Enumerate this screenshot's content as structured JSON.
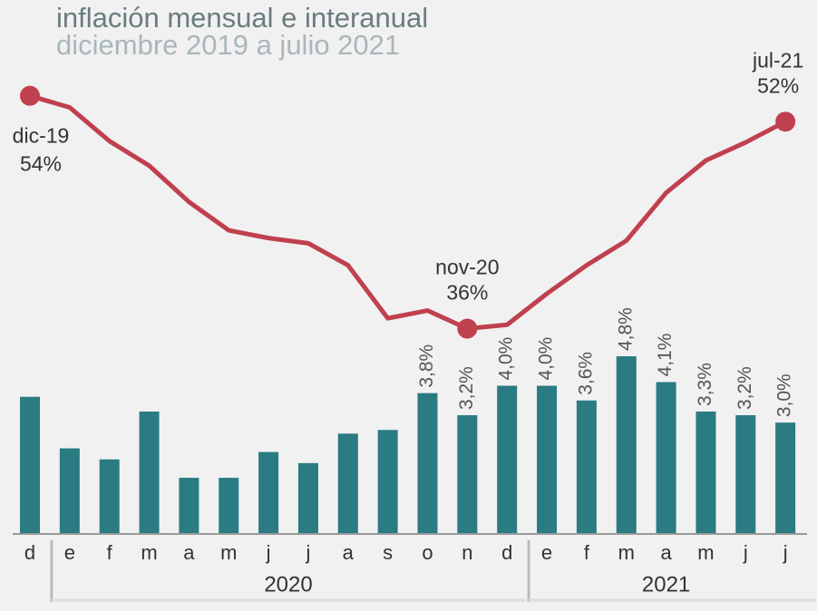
{
  "chart_data": {
    "type": "bar_line",
    "title": "inflación mensual e interanual",
    "subtitle": "diciembre 2019 a julio 2021",
    "categories": [
      "d",
      "e",
      "f",
      "m",
      "a",
      "m",
      "j",
      "j",
      "a",
      "s",
      "o",
      "n",
      "d",
      "e",
      "f",
      "m",
      "a",
      "m",
      "j",
      "j"
    ],
    "groups": [
      "2020",
      "2021"
    ],
    "ylim": [
      0,
      13
    ],
    "y2lim": [
      20,
      57
    ],
    "series": [
      {
        "name": "mensual",
        "type": "bar",
        "color": "#2a7b82",
        "values": [
          3.7,
          2.3,
          2.0,
          3.3,
          1.5,
          1.5,
          2.2,
          1.9,
          2.7,
          2.8,
          3.8,
          3.2,
          4.0,
          4.0,
          3.6,
          4.8,
          4.1,
          3.3,
          3.2,
          3.0
        ],
        "value_labels": [
          null,
          null,
          null,
          null,
          null,
          null,
          null,
          null,
          null,
          null,
          "3,8%",
          "3,2%",
          "4,0%",
          "4,0%",
          "3,6%",
          "4,8%",
          "4,1%",
          "3,3%",
          "3,2%",
          "3,0%"
        ]
      },
      {
        "name": "interanual",
        "type": "line",
        "axis": "y2",
        "color": "#c0404f",
        "values": [
          53.8,
          52.9,
          50.3,
          48.4,
          45.6,
          43.4,
          42.8,
          42.4,
          40.7,
          36.6,
          37.2,
          35.8,
          36.1,
          38.5,
          40.7,
          42.6,
          46.3,
          48.8,
          50.2,
          51.8
        ],
        "point_labels": [
          "dic-19",
          null,
          null,
          null,
          null,
          null,
          null,
          null,
          null,
          null,
          null,
          "nov-20",
          null,
          null,
          null,
          null,
          null,
          null,
          null,
          "jul-21"
        ],
        "value_labels": [
          "54%",
          null,
          null,
          null,
          null,
          null,
          null,
          null,
          null,
          null,
          null,
          "36%",
          null,
          null,
          null,
          null,
          null,
          null,
          null,
          "52%"
        ]
      }
    ]
  }
}
